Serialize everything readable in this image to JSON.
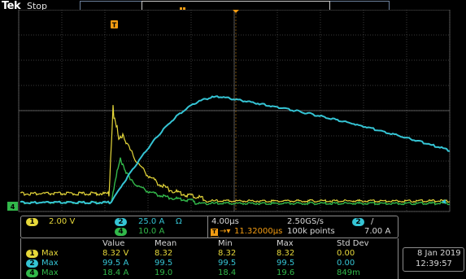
{
  "header": {
    "brand": "Tek",
    "run_state": "Stop",
    "trigger_marker": "T"
  },
  "colors": {
    "ch1": "#e6d83a",
    "ch2": "#35c4d4",
    "ch4": "#32b84a",
    "trigger": "#f39c12",
    "grid": "#5a5a5a"
  },
  "channels": [
    {
      "id": "1",
      "scale": "2.00 V"
    },
    {
      "id": "2",
      "scale": "25.0 A",
      "coupling": "Ω"
    },
    {
      "id": "4",
      "scale": "10.0 A"
    }
  ],
  "horizontal": {
    "time_per_div": "4.00µs",
    "sample_rate": "2.50GS/s",
    "trigger_delay": "11.32000µs",
    "record_length": "100k points",
    "trigger_source": "2",
    "trigger_slope": "/",
    "trigger_level": "7.00 A"
  },
  "measurements": {
    "headers": [
      "Value",
      "Mean",
      "Min",
      "Max",
      "Std Dev"
    ],
    "rows": [
      {
        "channel": "1",
        "type": "Max",
        "value": "8.32 V",
        "mean": "8.32",
        "min": "8.32",
        "max": "8.32",
        "std": "0.00"
      },
      {
        "channel": "2",
        "type": "Max",
        "value": "99.5 A",
        "mean": "99.5",
        "min": "99.5",
        "max": "99.5",
        "std": "0.00"
      },
      {
        "channel": "4",
        "type": "Max",
        "value": "18.4 A",
        "mean": "19.0",
        "min": "18.4",
        "max": "19.6",
        "std": "849m"
      }
    ]
  },
  "datetime": {
    "date": "8 Jan 2019",
    "time": "12:39:57"
  },
  "ground_markers": {
    "ch4": "4"
  }
}
